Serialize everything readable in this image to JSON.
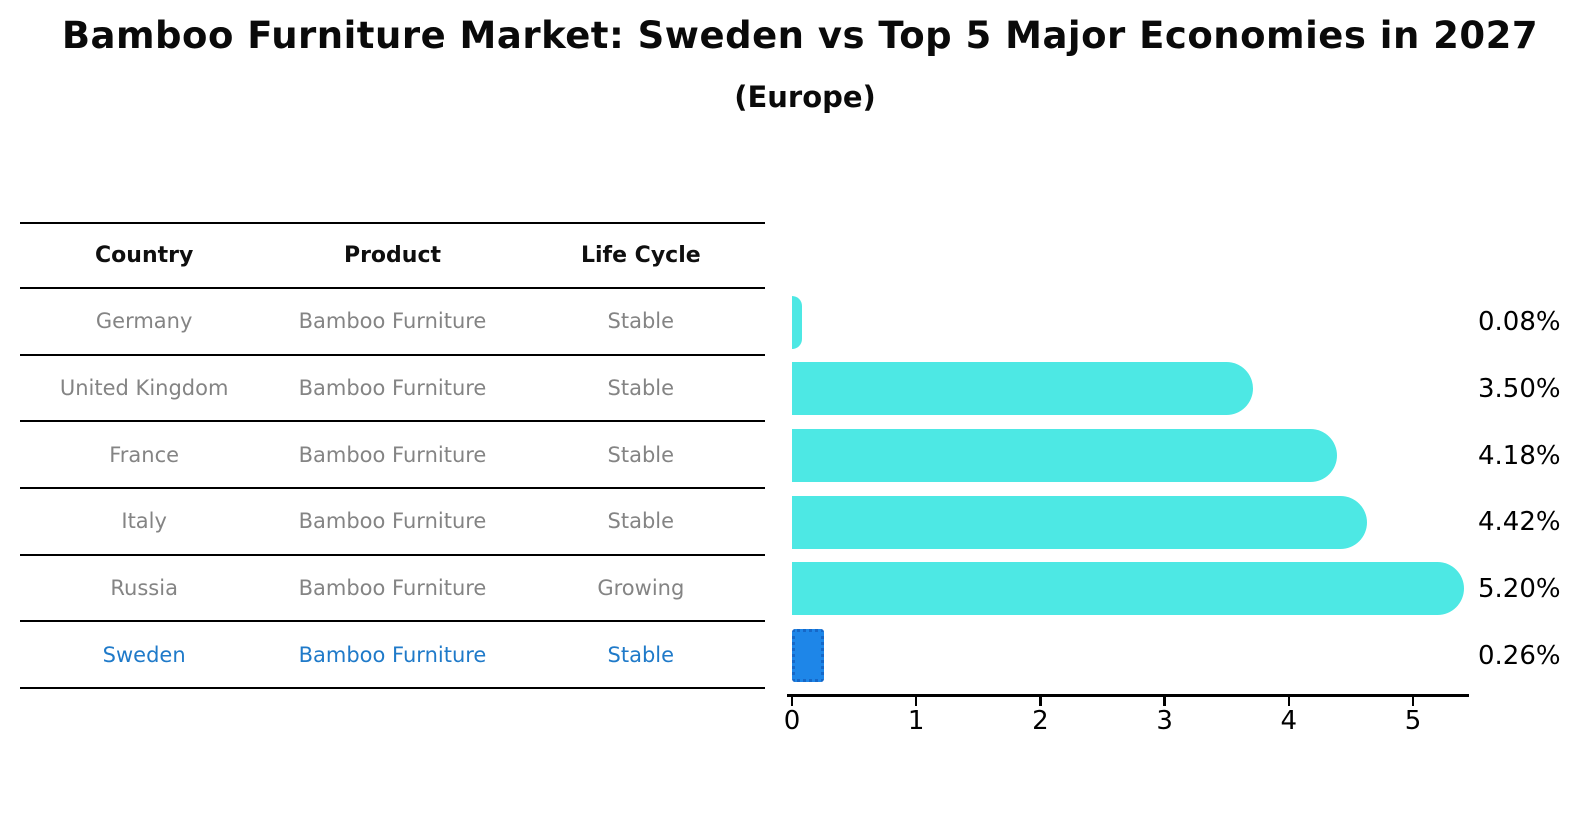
{
  "title": "Bamboo Furniture Market: Sweden vs Top 5 Major Economies in 2027",
  "subtitle": "(Europe)",
  "table": {
    "headers": [
      "Country",
      "Product",
      "Life Cycle"
    ],
    "rows": [
      {
        "country": "Germany",
        "product": "Bamboo Furniture",
        "life_cycle": "Stable",
        "highlight": false
      },
      {
        "country": "United Kingdom",
        "product": "Bamboo Furniture",
        "life_cycle": "Stable",
        "highlight": false
      },
      {
        "country": "France",
        "product": "Bamboo Furniture",
        "life_cycle": "Stable",
        "highlight": false
      },
      {
        "country": "Italy",
        "product": "Bamboo Furniture",
        "life_cycle": "Stable",
        "highlight": false
      },
      {
        "country": "Russia",
        "product": "Bamboo Furniture",
        "life_cycle": "Growing",
        "highlight": false
      },
      {
        "country": "Sweden",
        "product": "Bamboo Furniture",
        "life_cycle": "Stable",
        "highlight": true
      }
    ]
  },
  "chart_data": {
    "type": "bar",
    "orientation": "horizontal",
    "title": "Bamboo Furniture Market: Sweden vs Top 5 Major Economies in 2027",
    "subtitle": "(Europe)",
    "categories": [
      "Germany",
      "United Kingdom",
      "France",
      "Italy",
      "Russia",
      "Sweden"
    ],
    "values": [
      0.08,
      3.5,
      4.18,
      4.42,
      5.2,
      0.26
    ],
    "value_labels": [
      "0.08%",
      "3.50%",
      "4.18%",
      "4.42%",
      "5.20%",
      "0.26%"
    ],
    "xlabel": "",
    "ylabel": "",
    "xlim": [
      0,
      5.45
    ],
    "xticks": [
      "0",
      "1",
      "2",
      "3",
      "4",
      "5"
    ],
    "grid": false,
    "legend": "none",
    "highlight_index": 5,
    "colors": {
      "bar": "#4de8e4",
      "highlight_bar": "#1e86e8",
      "highlight_bar_border": "#1668c8",
      "muted_text": "#848484",
      "highlight_text": "#1f7ac9",
      "axis": "#000000",
      "title_text": "#0a0a0a"
    }
  }
}
